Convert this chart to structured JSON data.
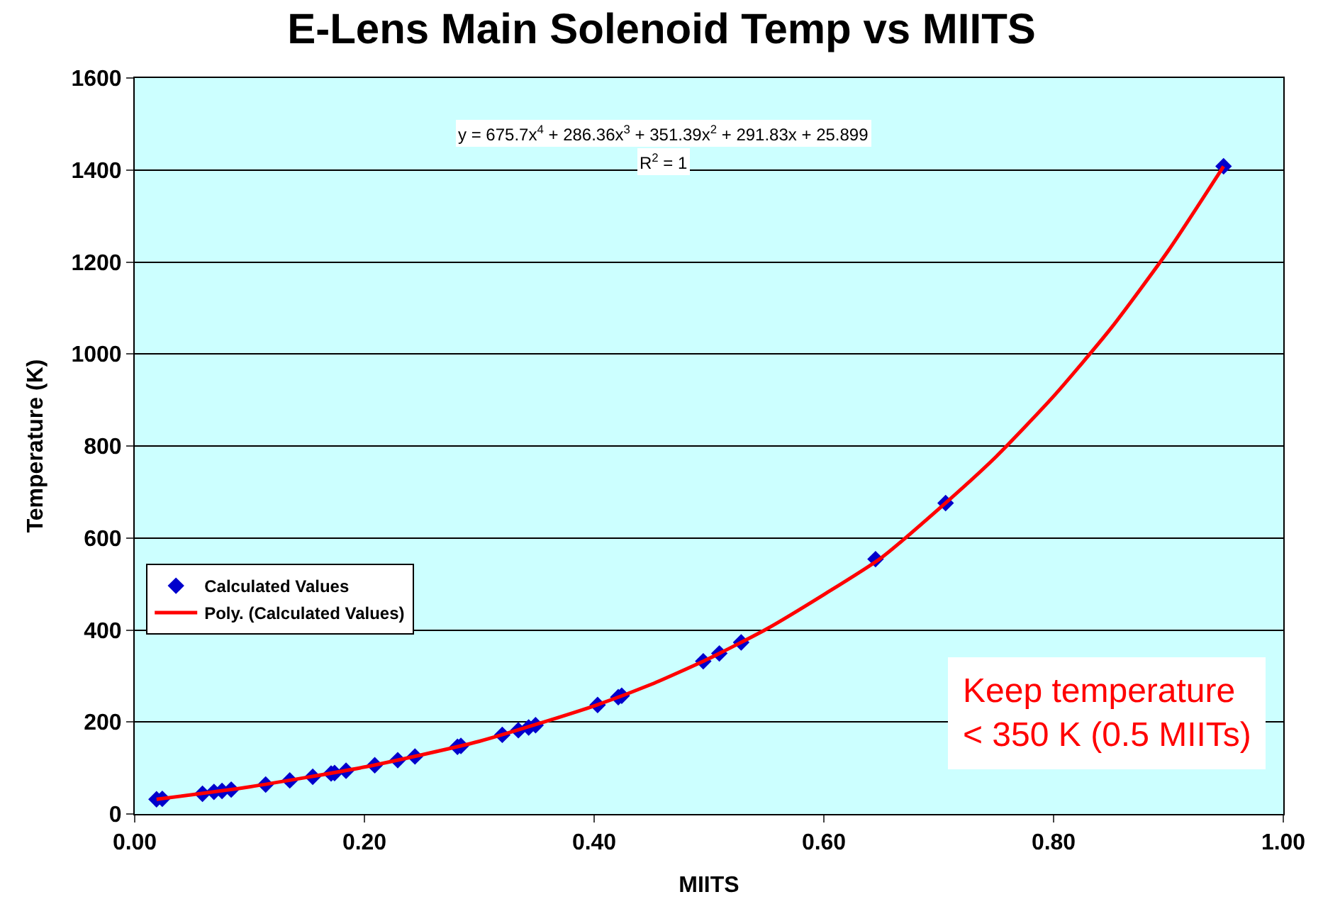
{
  "chart_data": {
    "type": "scatter",
    "title": "E-Lens Main Solenoid Temp vs MIITS",
    "xlabel": "MIITS",
    "ylabel": "Temperature (K)",
    "series": [
      {
        "name": "Calculated Values",
        "color": "#0000cc",
        "marker": "diamond",
        "x": [
          0.019,
          0.024,
          0.059,
          0.069,
          0.076,
          0.084,
          0.114,
          0.135,
          0.155,
          0.171,
          0.174,
          0.184,
          0.209,
          0.229,
          0.244,
          0.281,
          0.284,
          0.32,
          0.334,
          0.343,
          0.349,
          0.403,
          0.421,
          0.424,
          0.495,
          0.509,
          0.528,
          0.645,
          0.706,
          0.948
        ],
        "values": [
          32,
          33,
          44,
          48,
          50,
          53,
          64,
          73,
          81,
          88,
          89,
          94,
          106,
          117,
          125,
          146,
          148,
          172,
          182,
          188,
          193,
          237,
          254,
          257,
          332,
          349,
          373,
          554,
          676,
          1408
        ]
      },
      {
        "name": "Poly. (Calculated Values)",
        "type": "line",
        "color": "#ff0000",
        "marker": "none",
        "line_style": "solid",
        "x": [
          0.019,
          0.1,
          0.2,
          0.3,
          0.4,
          0.45,
          0.5,
          0.55,
          0.6,
          0.65,
          0.7,
          0.75,
          0.8,
          0.85,
          0.9,
          0.948
        ],
        "values": [
          32,
          59,
          102,
          158,
          235,
          282,
          338,
          402,
          477,
          557,
          663,
          777,
          908,
          1056,
          1225,
          1408
        ]
      }
    ],
    "xlim": [
      0,
      1
    ],
    "xticks": [
      {
        "value": 0,
        "label": "0.00"
      },
      {
        "value": 0.2,
        "label": "0.20"
      },
      {
        "value": 0.4,
        "label": "0.40"
      },
      {
        "value": 0.6,
        "label": "0.60"
      },
      {
        "value": 0.8,
        "label": "0.80"
      },
      {
        "value": 1,
        "label": "1.00"
      }
    ],
    "ylim": [
      0,
      1600
    ],
    "yticks": [
      0,
      200,
      400,
      600,
      800,
      1000,
      1200,
      1400,
      1600
    ],
    "grid": "y",
    "legend": "left",
    "annotations": [
      "y = 675.7x$^{4}$ + 286.36x$^{3}$ + 351.39x$^{2}$ + 291.83x + 25.899",
      "R$^{2}$ = 1",
      "Keep temperature\n< 350 K (0.5 MIITs)"
    ]
  }
}
